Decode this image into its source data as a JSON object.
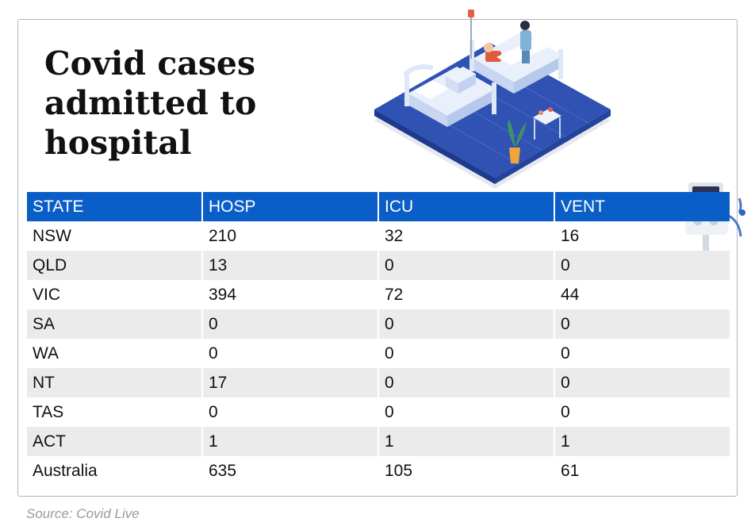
{
  "title": "Covid cases\nadmitted to\nhospital",
  "table": {
    "headers": [
      "STATE",
      "HOSP",
      "ICU",
      "VENT"
    ],
    "rows": [
      [
        "NSW",
        "210",
        "32",
        "16"
      ],
      [
        "QLD",
        "13",
        "0",
        "0"
      ],
      [
        "VIC",
        "394",
        "72",
        "44"
      ],
      [
        "SA",
        "0",
        "0",
        "0"
      ],
      [
        "WA",
        "0",
        "0",
        "0"
      ],
      [
        "NT",
        "17",
        "0",
        "0"
      ],
      [
        "TAS",
        "0",
        "0",
        "0"
      ],
      [
        "ACT",
        "1",
        "1",
        "1"
      ],
      [
        "Australia",
        "635",
        "105",
        "61"
      ]
    ]
  },
  "source": "Source: Covid Live",
  "colors": {
    "header_bg": "#0a5ec7",
    "stripe": "#ebebeb",
    "floor": "#2f52b3"
  },
  "illustrations": [
    "hospital-ward-illustration",
    "ventilator-illustration"
  ]
}
